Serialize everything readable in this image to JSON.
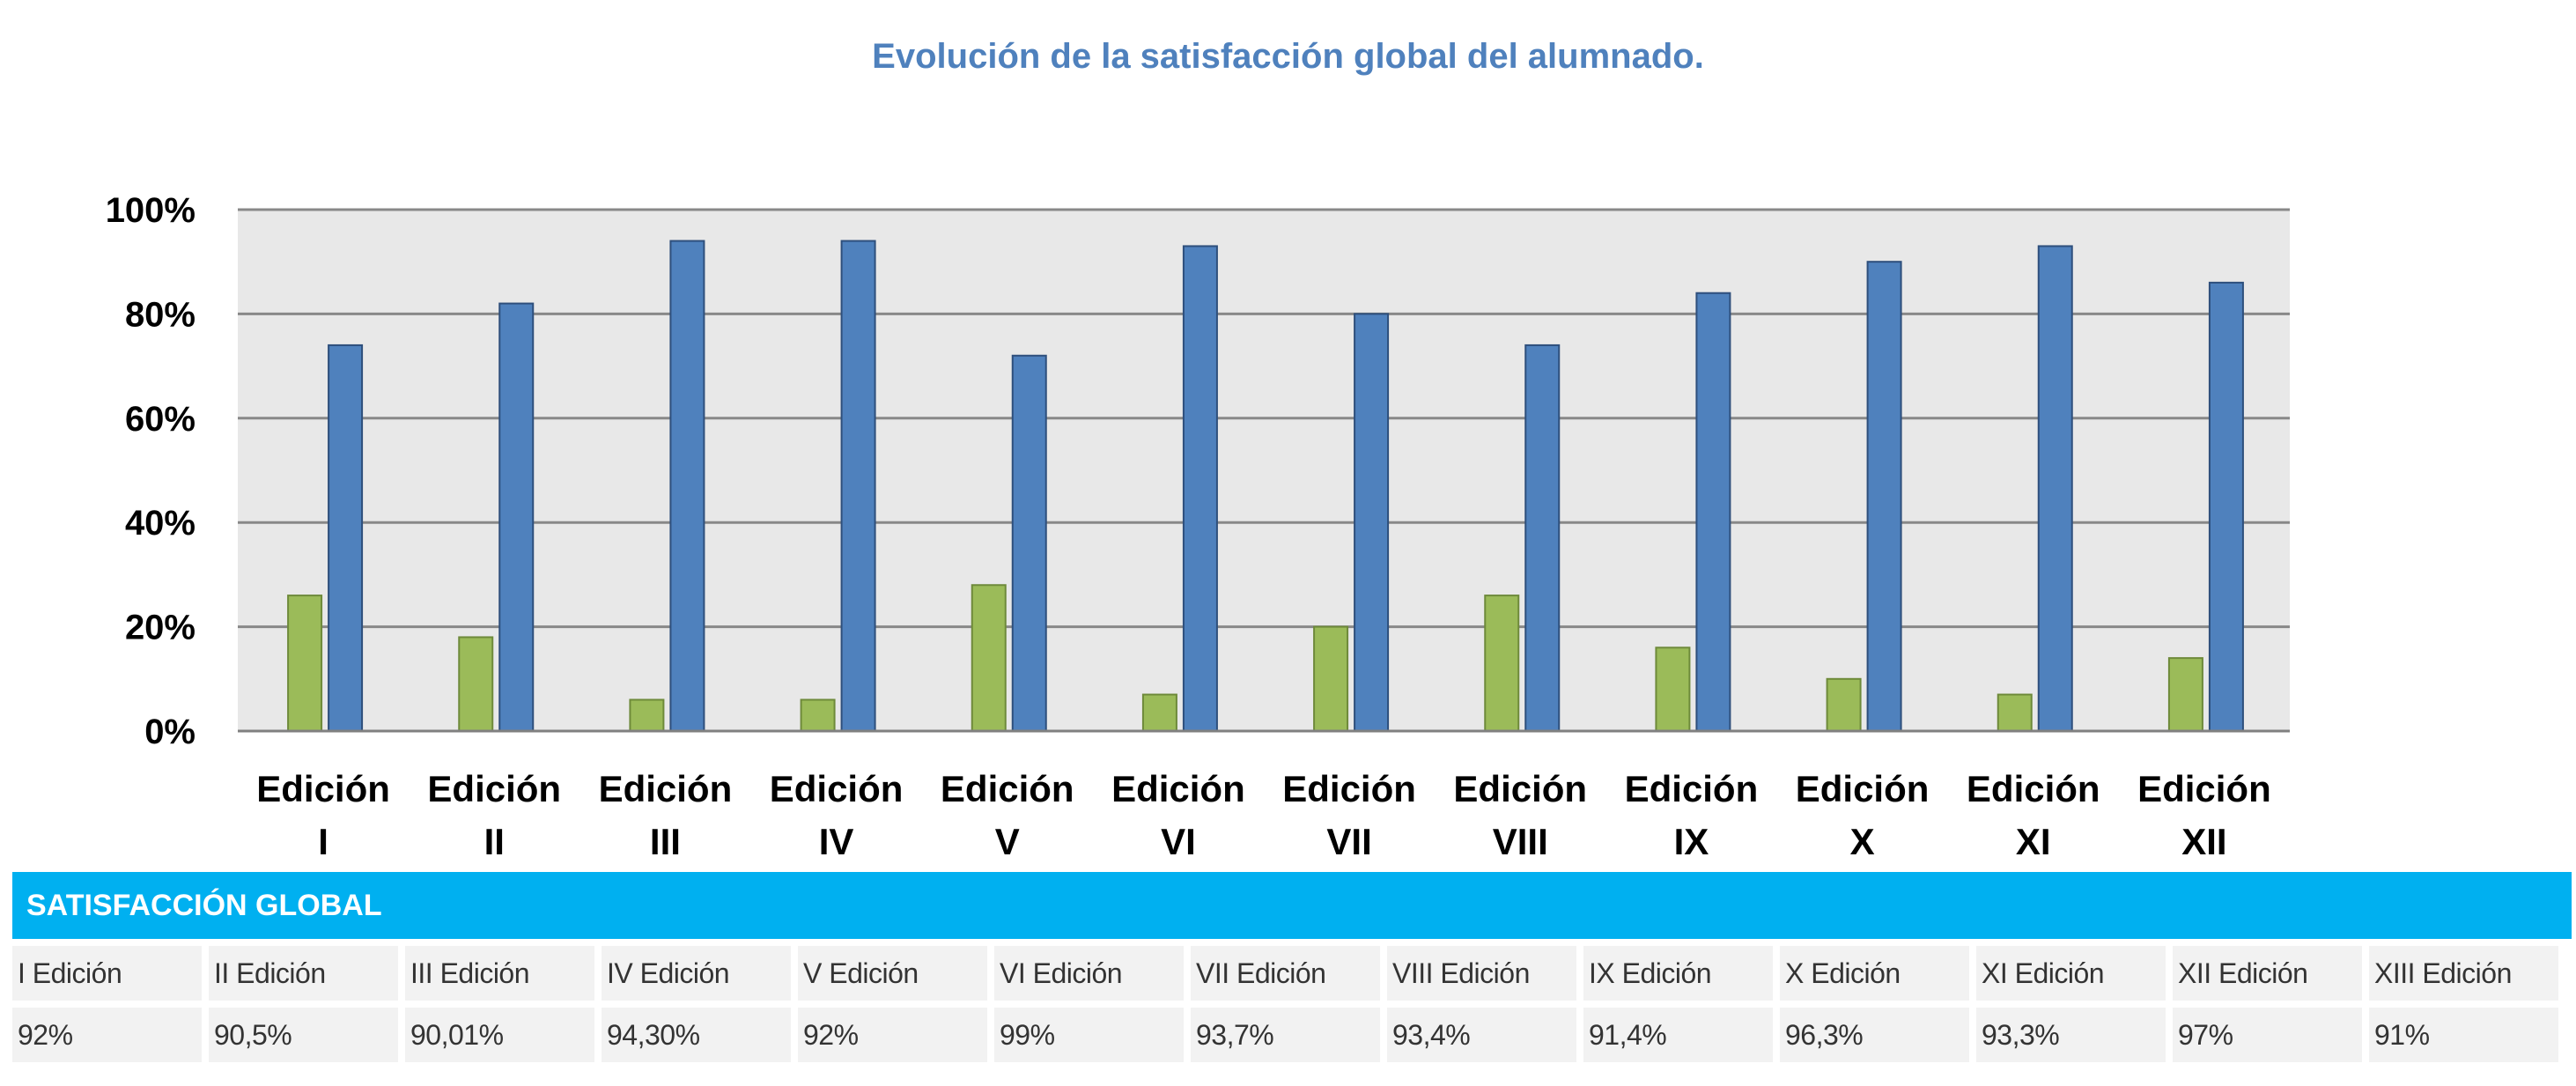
{
  "chart_data": {
    "type": "bar",
    "title": "Evolución de la satisfacción global del alumnado.",
    "categories": [
      [
        "Edición",
        "I"
      ],
      [
        "Edición",
        "II"
      ],
      [
        "Edición",
        "III"
      ],
      [
        "Edición",
        "IV"
      ],
      [
        "Edición",
        "V"
      ],
      [
        "Edición",
        "VI"
      ],
      [
        "Edición",
        "VII"
      ],
      [
        "Edición",
        "VIII"
      ],
      [
        "Edición",
        "IX"
      ],
      [
        "Edición",
        "X"
      ],
      [
        "Edición",
        "XI"
      ],
      [
        "Edición",
        "XII"
      ]
    ],
    "series": [
      {
        "color": "#9bbb59",
        "values": [
          26,
          18,
          6,
          6,
          28,
          7,
          20,
          26,
          16,
          10,
          7,
          14
        ]
      },
      {
        "color": "#4f81bd",
        "values": [
          74,
          82,
          94,
          94,
          72,
          93,
          80,
          74,
          84,
          90,
          93,
          86
        ]
      }
    ],
    "ylim": [
      0,
      100
    ],
    "yticks": [
      "0%",
      "20%",
      "40%",
      "60%",
      "80%",
      "100%"
    ],
    "plot_background": "#e8e8e8",
    "grid": true,
    "legend": "none"
  },
  "table": {
    "header": "SATISFACCIÓN GLOBAL",
    "header_color": "#00b0f0",
    "editions": [
      "I Edición",
      "II Edición",
      "III Edición",
      "IV Edición",
      "V Edición",
      "VI Edición",
      "VII Edición",
      "VIII Edición",
      "IX Edición",
      "X Edición",
      "XI Edición",
      "XII Edición",
      "XIII Edición"
    ],
    "values": [
      "92%",
      "90,5%",
      "90,01%",
      "94,30%",
      "92%",
      "99%",
      "93,7%",
      "93,4%",
      "91,4%",
      "96,3%",
      "93,3%",
      "97%",
      "91%"
    ]
  }
}
